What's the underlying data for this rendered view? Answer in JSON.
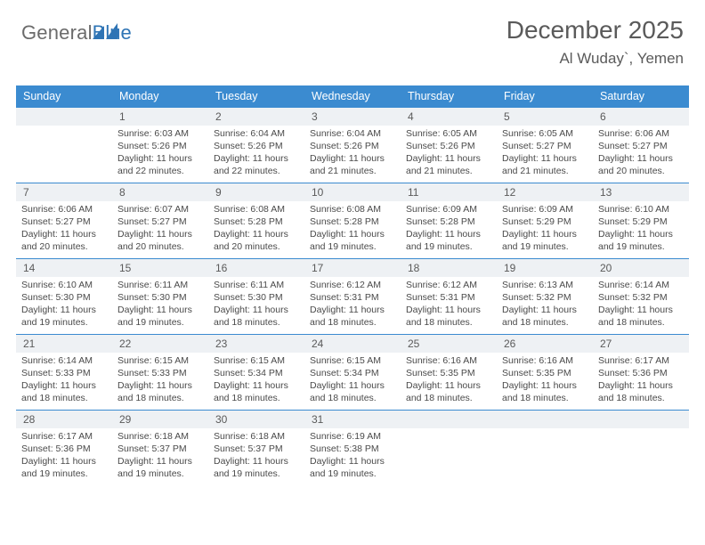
{
  "brand": {
    "part1": "General",
    "part2": "Blue"
  },
  "title": "December 2025",
  "subtitle": "Al Wuday`, Yemen",
  "colors": {
    "header_bg": "#3b8bd0",
    "header_text": "#ffffff",
    "rule": "#3b8bd0",
    "daynum_bg": "#eef1f4",
    "text": "#4a4a4a",
    "logo_gray": "#6b6b6b",
    "logo_blue": "#2e74b5",
    "page_bg": "#ffffff"
  },
  "typography": {
    "title_fontsize": 28,
    "subtitle_fontsize": 17,
    "dow_fontsize": 12.5,
    "daynum_fontsize": 12,
    "body_fontsize": 10.5
  },
  "dow": [
    "Sunday",
    "Monday",
    "Tuesday",
    "Wednesday",
    "Thursday",
    "Friday",
    "Saturday"
  ],
  "weeks": [
    [
      null,
      {
        "n": "1",
        "sr": "6:03 AM",
        "ss": "5:26 PM",
        "dl": "11 hours and 22 minutes."
      },
      {
        "n": "2",
        "sr": "6:04 AM",
        "ss": "5:26 PM",
        "dl": "11 hours and 22 minutes."
      },
      {
        "n": "3",
        "sr": "6:04 AM",
        "ss": "5:26 PM",
        "dl": "11 hours and 21 minutes."
      },
      {
        "n": "4",
        "sr": "6:05 AM",
        "ss": "5:26 PM",
        "dl": "11 hours and 21 minutes."
      },
      {
        "n": "5",
        "sr": "6:05 AM",
        "ss": "5:27 PM",
        "dl": "11 hours and 21 minutes."
      },
      {
        "n": "6",
        "sr": "6:06 AM",
        "ss": "5:27 PM",
        "dl": "11 hours and 20 minutes."
      }
    ],
    [
      {
        "n": "7",
        "sr": "6:06 AM",
        "ss": "5:27 PM",
        "dl": "11 hours and 20 minutes."
      },
      {
        "n": "8",
        "sr": "6:07 AM",
        "ss": "5:27 PM",
        "dl": "11 hours and 20 minutes."
      },
      {
        "n": "9",
        "sr": "6:08 AM",
        "ss": "5:28 PM",
        "dl": "11 hours and 20 minutes."
      },
      {
        "n": "10",
        "sr": "6:08 AM",
        "ss": "5:28 PM",
        "dl": "11 hours and 19 minutes."
      },
      {
        "n": "11",
        "sr": "6:09 AM",
        "ss": "5:28 PM",
        "dl": "11 hours and 19 minutes."
      },
      {
        "n": "12",
        "sr": "6:09 AM",
        "ss": "5:29 PM",
        "dl": "11 hours and 19 minutes."
      },
      {
        "n": "13",
        "sr": "6:10 AM",
        "ss": "5:29 PM",
        "dl": "11 hours and 19 minutes."
      }
    ],
    [
      {
        "n": "14",
        "sr": "6:10 AM",
        "ss": "5:30 PM",
        "dl": "11 hours and 19 minutes."
      },
      {
        "n": "15",
        "sr": "6:11 AM",
        "ss": "5:30 PM",
        "dl": "11 hours and 19 minutes."
      },
      {
        "n": "16",
        "sr": "6:11 AM",
        "ss": "5:30 PM",
        "dl": "11 hours and 18 minutes."
      },
      {
        "n": "17",
        "sr": "6:12 AM",
        "ss": "5:31 PM",
        "dl": "11 hours and 18 minutes."
      },
      {
        "n": "18",
        "sr": "6:12 AM",
        "ss": "5:31 PM",
        "dl": "11 hours and 18 minutes."
      },
      {
        "n": "19",
        "sr": "6:13 AM",
        "ss": "5:32 PM",
        "dl": "11 hours and 18 minutes."
      },
      {
        "n": "20",
        "sr": "6:14 AM",
        "ss": "5:32 PM",
        "dl": "11 hours and 18 minutes."
      }
    ],
    [
      {
        "n": "21",
        "sr": "6:14 AM",
        "ss": "5:33 PM",
        "dl": "11 hours and 18 minutes."
      },
      {
        "n": "22",
        "sr": "6:15 AM",
        "ss": "5:33 PM",
        "dl": "11 hours and 18 minutes."
      },
      {
        "n": "23",
        "sr": "6:15 AM",
        "ss": "5:34 PM",
        "dl": "11 hours and 18 minutes."
      },
      {
        "n": "24",
        "sr": "6:15 AM",
        "ss": "5:34 PM",
        "dl": "11 hours and 18 minutes."
      },
      {
        "n": "25",
        "sr": "6:16 AM",
        "ss": "5:35 PM",
        "dl": "11 hours and 18 minutes."
      },
      {
        "n": "26",
        "sr": "6:16 AM",
        "ss": "5:35 PM",
        "dl": "11 hours and 18 minutes."
      },
      {
        "n": "27",
        "sr": "6:17 AM",
        "ss": "5:36 PM",
        "dl": "11 hours and 18 minutes."
      }
    ],
    [
      {
        "n": "28",
        "sr": "6:17 AM",
        "ss": "5:36 PM",
        "dl": "11 hours and 19 minutes."
      },
      {
        "n": "29",
        "sr": "6:18 AM",
        "ss": "5:37 PM",
        "dl": "11 hours and 19 minutes."
      },
      {
        "n": "30",
        "sr": "6:18 AM",
        "ss": "5:37 PM",
        "dl": "11 hours and 19 minutes."
      },
      {
        "n": "31",
        "sr": "6:19 AM",
        "ss": "5:38 PM",
        "dl": "11 hours and 19 minutes."
      },
      null,
      null,
      null
    ]
  ],
  "labels": {
    "sunrise": "Sunrise:",
    "sunset": "Sunset:",
    "daylight": "Daylight:"
  }
}
